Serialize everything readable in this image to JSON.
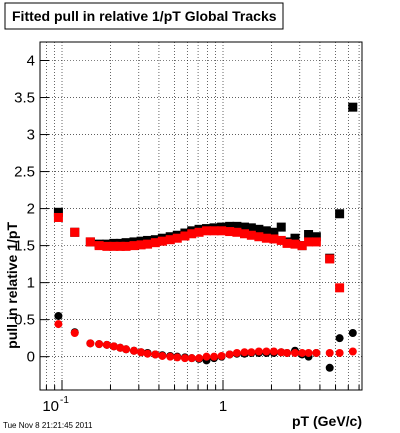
{
  "chart_data": {
    "type": "scatter",
    "title": "Fitted pull in relative 1/pT  Global Tracks",
    "y_label": "pull in relative 1/pT",
    "x_label": "pT (GeV/c)",
    "footer": "Tue Nov  8 21:21:45 2011",
    "log_x": true,
    "grid": true,
    "xlim": [
      0.073,
      7.3
    ],
    "ylim": [
      -0.45,
      4.25
    ],
    "xticks": [
      {
        "value": 0.1,
        "label": "10",
        "exponent": "-1"
      },
      1
    ],
    "xminor": [
      0.08,
      0.09,
      0.2,
      0.3,
      0.4,
      0.5,
      0.6,
      0.7,
      0.8,
      0.9,
      2,
      3,
      4,
      5,
      6,
      7
    ],
    "yticks": [
      0,
      0.5,
      1,
      1.5,
      2,
      2.5,
      3,
      3.5,
      4
    ],
    "series": [
      {
        "color": "#000000",
        "marker": "square",
        "x": [
          0.095,
          0.12,
          0.15,
          0.17,
          0.19,
          0.21,
          0.23,
          0.25,
          0.28,
          0.31,
          0.34,
          0.38,
          0.42,
          0.47,
          0.52,
          0.58,
          0.64,
          0.71,
          0.79,
          0.88,
          0.98,
          1.1,
          1.22,
          1.36,
          1.5,
          1.67,
          1.86,
          2.07,
          2.3,
          2.5,
          2.8,
          3.1,
          3.4,
          3.8,
          4.6,
          5.3,
          6.4
        ],
        "values": [
          1.95,
          1.68,
          1.55,
          1.52,
          1.52,
          1.53,
          1.53,
          1.54,
          1.55,
          1.56,
          1.57,
          1.58,
          1.6,
          1.62,
          1.64,
          1.67,
          1.7,
          1.72,
          1.73,
          1.74,
          1.75,
          1.76,
          1.76,
          1.75,
          1.74,
          1.72,
          1.7,
          1.68,
          1.75,
          1.55,
          1.6,
          1.5,
          1.65,
          1.62,
          1.33,
          1.93,
          3.37
        ]
      },
      {
        "color": "#ff0000",
        "marker": "square",
        "x": [
          0.095,
          0.12,
          0.15,
          0.17,
          0.19,
          0.21,
          0.23,
          0.25,
          0.28,
          0.31,
          0.34,
          0.38,
          0.42,
          0.47,
          0.52,
          0.58,
          0.64,
          0.71,
          0.79,
          0.88,
          0.98,
          1.1,
          1.22,
          1.36,
          1.5,
          1.67,
          1.86,
          2.07,
          2.3,
          2.5,
          2.8,
          3.1,
          3.4,
          3.8,
          4.6,
          5.3
        ],
        "values": [
          1.88,
          1.68,
          1.55,
          1.5,
          1.49,
          1.49,
          1.49,
          1.49,
          1.5,
          1.51,
          1.52,
          1.54,
          1.56,
          1.58,
          1.6,
          1.63,
          1.66,
          1.68,
          1.7,
          1.7,
          1.7,
          1.69,
          1.68,
          1.66,
          1.64,
          1.62,
          1.6,
          1.59,
          1.57,
          1.53,
          1.52,
          1.5,
          1.55,
          1.55,
          1.32,
          0.93
        ]
      },
      {
        "color": "#000000",
        "marker": "circle",
        "x": [
          0.095,
          0.12,
          0.15,
          0.17,
          0.19,
          0.21,
          0.23,
          0.25,
          0.28,
          0.31,
          0.34,
          0.38,
          0.42,
          0.47,
          0.52,
          0.58,
          0.64,
          0.71,
          0.79,
          0.88,
          0.98,
          1.1,
          1.22,
          1.36,
          1.5,
          1.67,
          1.86,
          2.07,
          2.3,
          2.5,
          2.8,
          3.1,
          3.4,
          3.8,
          4.6,
          5.3,
          6.4
        ],
        "values": [
          0.55,
          0.33,
          0.18,
          0.17,
          0.16,
          0.14,
          0.12,
          0.1,
          0.08,
          0.06,
          0.05,
          0.03,
          0.02,
          0.01,
          0.0,
          -0.01,
          -0.02,
          -0.03,
          -0.05,
          -0.02,
          0.0,
          0.03,
          0.04,
          0.04,
          0.05,
          0.05,
          0.05,
          0.05,
          0.06,
          0.05,
          0.08,
          0.03,
          0.0,
          0.05,
          -0.15,
          0.25,
          0.32
        ]
      },
      {
        "color": "#ff0000",
        "marker": "circle",
        "x": [
          0.095,
          0.12,
          0.15,
          0.17,
          0.19,
          0.21,
          0.23,
          0.25,
          0.28,
          0.31,
          0.34,
          0.38,
          0.42,
          0.47,
          0.52,
          0.58,
          0.64,
          0.71,
          0.79,
          0.88,
          0.98,
          1.1,
          1.22,
          1.36,
          1.5,
          1.67,
          1.86,
          2.07,
          2.3,
          2.5,
          2.8,
          3.1,
          3.4,
          3.8,
          4.6,
          5.3,
          6.4
        ],
        "values": [
          0.44,
          0.32,
          0.18,
          0.17,
          0.16,
          0.14,
          0.12,
          0.1,
          0.08,
          0.06,
          0.04,
          0.03,
          0.01,
          0.0,
          -0.01,
          -0.02,
          -0.02,
          -0.02,
          0.0,
          0.0,
          0.01,
          0.03,
          0.05,
          0.06,
          0.06,
          0.07,
          0.07,
          0.07,
          0.06,
          0.05,
          0.05,
          0.05,
          0.05,
          0.05,
          0.05,
          0.05,
          0.07
        ]
      }
    ]
  }
}
